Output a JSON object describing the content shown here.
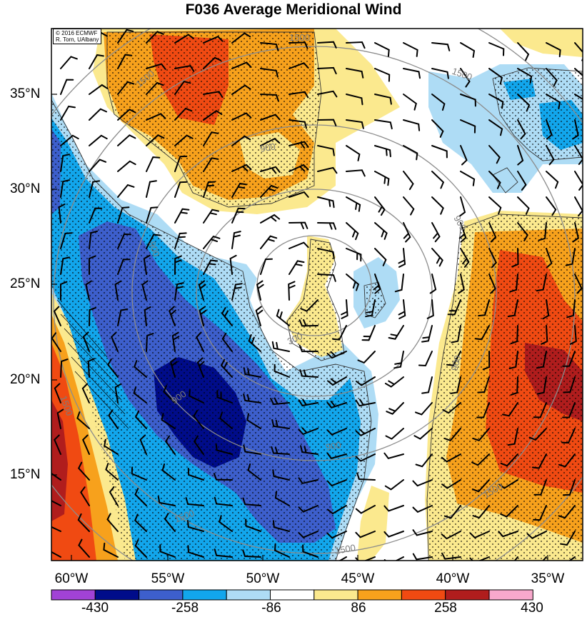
{
  "title": "F036 Average Meridional Wind",
  "credit": {
    "line1": "© 2016 ECMWF",
    "line2": "R. Torn, UAlbany"
  },
  "latitude_labels": [
    "35°N",
    "30°N",
    "25°N",
    "20°N",
    "15°N"
  ],
  "longitude_labels": [
    "60°W",
    "55°W",
    "50°W",
    "45°W",
    "40°W",
    "35°W"
  ],
  "colorbar": {
    "labels": [
      "-430",
      "-258",
      "-86",
      "86",
      "258",
      "430"
    ],
    "colors": [
      "#a142d6",
      "#000c8a",
      "#3d5fcc",
      "#12a6ec",
      "#aedcf5",
      "#ffffff",
      "#fbe98e",
      "#f7a11c",
      "#f04a12",
      "#b01d1d",
      "#f8a8cc"
    ]
  },
  "contour_labels": [
    "1500",
    "1500",
    "1500",
    "900",
    "900",
    "900",
    "900",
    "900",
    "900",
    "300",
    "1500",
    "1500",
    "1500",
    "1500"
  ],
  "colors": {
    "deep_blue": "#000c8a",
    "mid_blue": "#3d5fcc",
    "cyan_blue": "#12a6ec",
    "light_blue": "#aedcf5",
    "light_yellow": "#fbe98e",
    "orange": "#f7a11c",
    "red_orange": "#f04a12",
    "dark_red": "#b01d1d",
    "contour_gray": "#8c8c8c"
  }
}
